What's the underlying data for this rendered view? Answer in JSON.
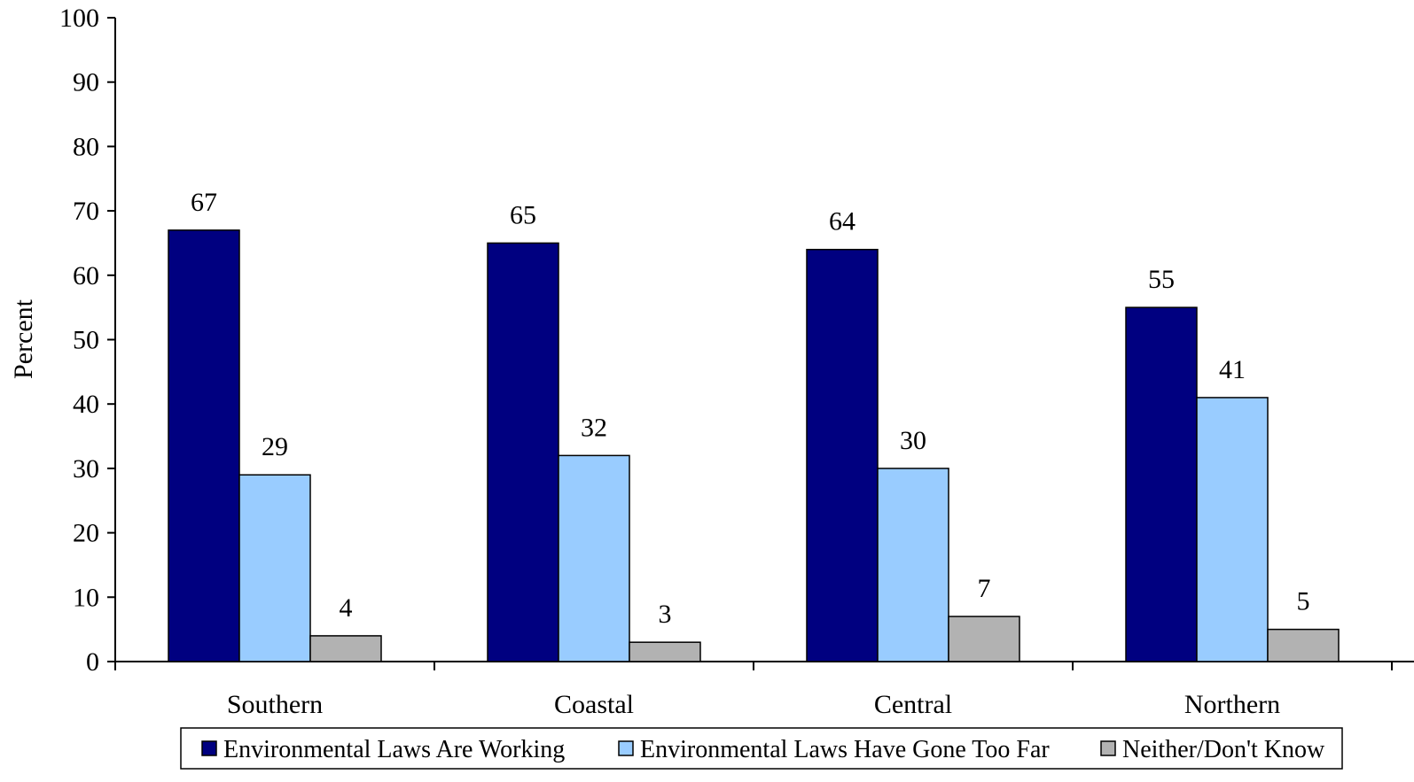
{
  "chart_data": {
    "type": "bar",
    "categories": [
      "Southern",
      "Coastal",
      "Central",
      "Northern"
    ],
    "series": [
      {
        "name": "Environmental Laws Are Working",
        "values": [
          67,
          65,
          64,
          55
        ],
        "color": "#000080"
      },
      {
        "name": "Environmental Laws Have Gone Too Far",
        "values": [
          29,
          32,
          30,
          41
        ],
        "color": "#99CCFF"
      },
      {
        "name": "Neither/Don't Know",
        "values": [
          4,
          3,
          7,
          5
        ],
        "color": "#B2B2B2"
      }
    ],
    "ylabel": "Percent",
    "ylim": [
      0,
      100
    ],
    "yticks": [
      "0",
      "10",
      "20",
      "30",
      "40",
      "50",
      "60",
      "70",
      "80",
      "90",
      "100"
    ],
    "grid": false,
    "legend_position": "bottom",
    "data_labels": true
  }
}
